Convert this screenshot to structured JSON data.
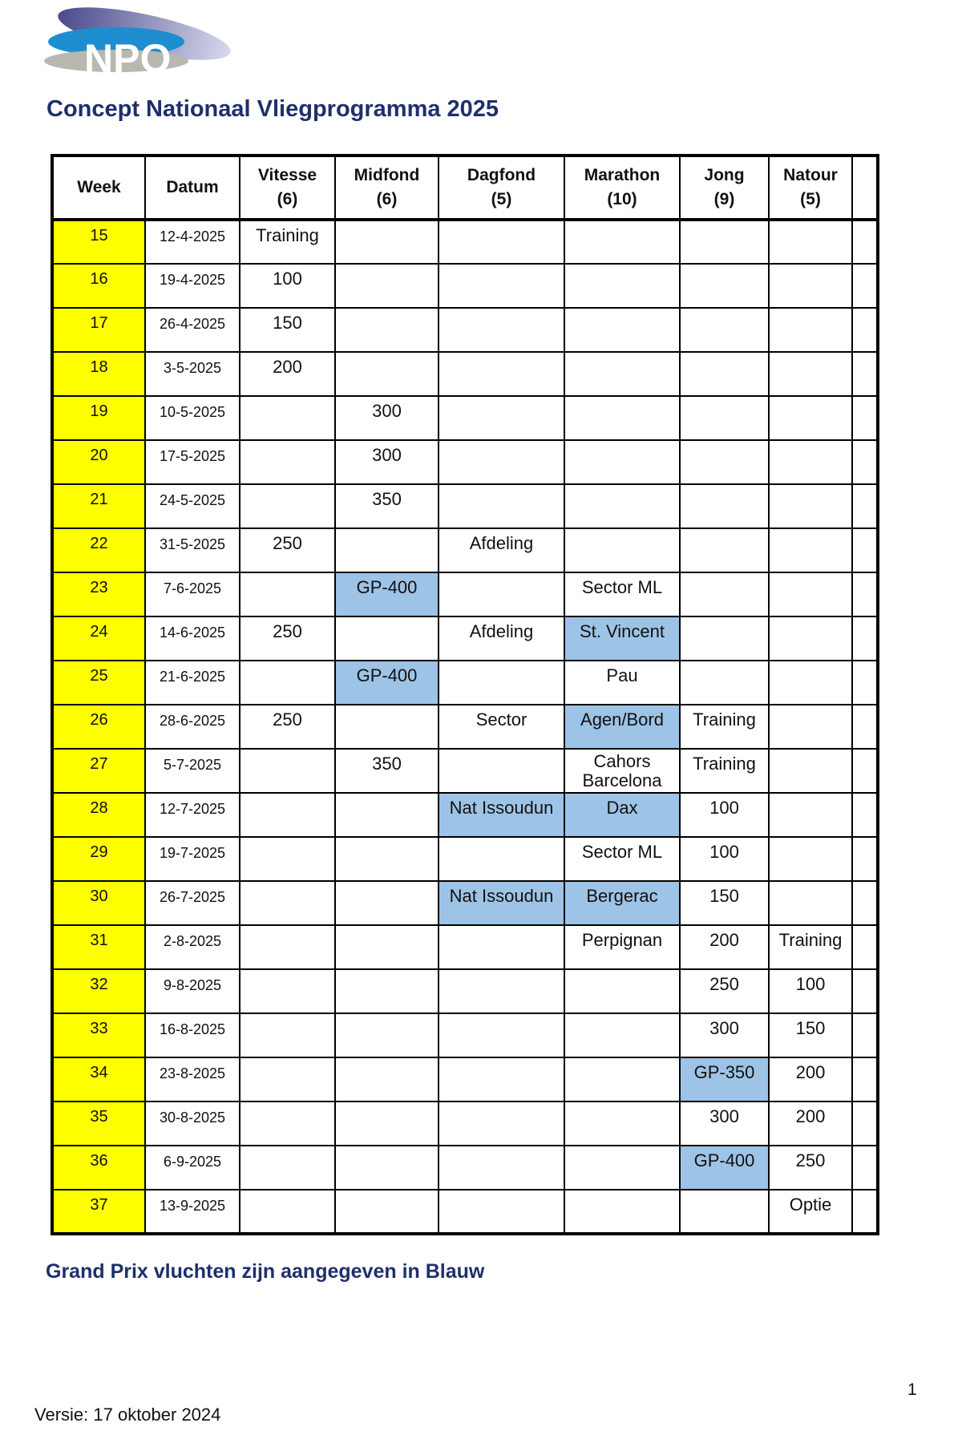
{
  "logo_text": "NPO",
  "title": "Concept Nationaal Vliegprogramma 2025",
  "colors": {
    "week_bg": "#ffff00",
    "grand_prix": "#9dc3e6",
    "title": "#1f2f6b"
  },
  "headers": [
    "Week",
    "Datum",
    "Vitesse\n(6)",
    "Midfond\n(6)",
    "Dagfond\n(5)",
    "Marathon\n(10)",
    "Jong\n(9)",
    "Natour\n(5)",
    ""
  ],
  "rows": [
    {
      "week": "15",
      "date": "12-4-2025",
      "cells": [
        {
          "t": "Training"
        },
        {},
        {},
        {},
        {},
        {}
      ]
    },
    {
      "week": "16",
      "date": "19-4-2025",
      "cells": [
        {
          "t": "100"
        },
        {},
        {},
        {},
        {},
        {}
      ]
    },
    {
      "week": "17",
      "date": "26-4-2025",
      "cells": [
        {
          "t": "150"
        },
        {},
        {},
        {},
        {},
        {}
      ]
    },
    {
      "week": "18",
      "date": "3-5-2025",
      "cells": [
        {
          "t": "200"
        },
        {},
        {},
        {},
        {},
        {}
      ]
    },
    {
      "week": "19",
      "date": "10-5-2025",
      "cells": [
        {},
        {
          "t": "300"
        },
        {},
        {},
        {},
        {}
      ]
    },
    {
      "week": "20",
      "date": "17-5-2025",
      "cells": [
        {},
        {
          "t": "300"
        },
        {},
        {},
        {},
        {}
      ]
    },
    {
      "week": "21",
      "date": "24-5-2025",
      "cells": [
        {},
        {
          "t": "350"
        },
        {},
        {},
        {},
        {}
      ]
    },
    {
      "week": "22",
      "date": "31-5-2025",
      "cells": [
        {
          "t": "250"
        },
        {},
        {
          "t": "Afdeling"
        },
        {},
        {},
        {}
      ]
    },
    {
      "week": "23",
      "date": "7-6-2025",
      "cells": [
        {},
        {
          "t": "GP-400",
          "gp": true
        },
        {},
        {
          "t": "Sector ML"
        },
        {},
        {}
      ]
    },
    {
      "week": "24",
      "date": "14-6-2025",
      "cells": [
        {
          "t": "250"
        },
        {},
        {
          "t": "Afdeling"
        },
        {
          "t": "St. Vincent",
          "gp": true
        },
        {},
        {}
      ]
    },
    {
      "week": "25",
      "date": "21-6-2025",
      "cells": [
        {},
        {
          "t": "GP-400",
          "gp": true
        },
        {},
        {
          "t": "Pau"
        },
        {},
        {}
      ]
    },
    {
      "week": "26",
      "date": "28-6-2025",
      "cells": [
        {
          "t": "250"
        },
        {},
        {
          "t": "Sector"
        },
        {
          "t": "Agen/Bord",
          "gp": true
        },
        {
          "t": "Training"
        },
        {}
      ]
    },
    {
      "week": "27",
      "date": "5-7-2025",
      "cells": [
        {},
        {
          "t": "350"
        },
        {},
        {
          "t": "Cahors\nBarcelona"
        },
        {
          "t": "Training"
        },
        {}
      ]
    },
    {
      "week": "28",
      "date": "12-7-2025",
      "cells": [
        {},
        {},
        {
          "t": "Nat Issoudun",
          "gp": true
        },
        {
          "t": "Dax",
          "gp": true
        },
        {
          "t": "100"
        },
        {}
      ]
    },
    {
      "week": "29",
      "date": "19-7-2025",
      "cells": [
        {},
        {},
        {},
        {
          "t": "Sector ML"
        },
        {
          "t": "100"
        },
        {}
      ]
    },
    {
      "week": "30",
      "date": "26-7-2025",
      "cells": [
        {},
        {},
        {
          "t": "Nat Issoudun",
          "gp": true
        },
        {
          "t": "Bergerac",
          "gp": true
        },
        {
          "t": "150"
        },
        {}
      ]
    },
    {
      "week": "31",
      "date": "2-8-2025",
      "cells": [
        {},
        {},
        {},
        {
          "t": "Perpignan"
        },
        {
          "t": "200"
        },
        {
          "t": "Training"
        }
      ]
    },
    {
      "week": "32",
      "date": "9-8-2025",
      "cells": [
        {},
        {},
        {},
        {},
        {
          "t": "250"
        },
        {
          "t": "100"
        }
      ]
    },
    {
      "week": "33",
      "date": "16-8-2025",
      "cells": [
        {},
        {},
        {},
        {},
        {
          "t": "300"
        },
        {
          "t": "150"
        }
      ]
    },
    {
      "week": "34",
      "date": "23-8-2025",
      "cells": [
        {},
        {},
        {},
        {},
        {
          "t": "GP-350",
          "gp": true
        },
        {
          "t": "200"
        }
      ]
    },
    {
      "week": "35",
      "date": "30-8-2025",
      "cells": [
        {},
        {},
        {},
        {},
        {
          "t": "300"
        },
        {
          "t": "200"
        }
      ]
    },
    {
      "week": "36",
      "date": "6-9-2025",
      "cells": [
        {},
        {},
        {},
        {},
        {
          "t": "GP-400",
          "gp": true
        },
        {
          "t": "250"
        }
      ]
    },
    {
      "week": "37",
      "date": "13-9-2025",
      "cells": [
        {},
        {},
        {},
        {},
        {},
        {
          "t": "Optie"
        }
      ]
    }
  ],
  "legend": "Grand Prix vluchten zijn aangegeven in Blauw",
  "page_number": "1",
  "version": "Versie: 17 oktober 2024"
}
